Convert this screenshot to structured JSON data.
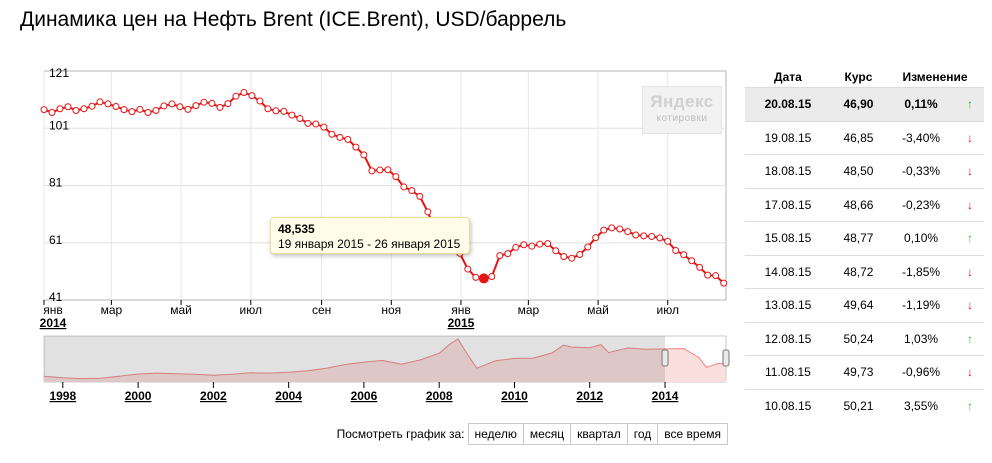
{
  "title": "Динамика цен на Нефть Brent (ICE.Brent), USD/баррель",
  "watermark": {
    "brand": "Яндекс",
    "subtitle": "котировки"
  },
  "tooltip": {
    "value": "48,535",
    "range": "19 января 2015 - 26 января 2015"
  },
  "range_bar": {
    "label": "Посмотреть график за:",
    "buttons": [
      "неделю",
      "месяц",
      "квартал",
      "год",
      "все время"
    ]
  },
  "quotes_table": {
    "headers": [
      "Дата",
      "Курс",
      "Изменение"
    ],
    "rows": [
      {
        "date": "20.08.15",
        "rate": "46,90",
        "change": "0,11%",
        "direction": "up"
      },
      {
        "date": "19.08.15",
        "rate": "46,85",
        "change": "-3,40%",
        "direction": "down"
      },
      {
        "date": "18.08.15",
        "rate": "48,50",
        "change": "-0,33%",
        "direction": "down"
      },
      {
        "date": "17.08.15",
        "rate": "48,66",
        "change": "-0,23%",
        "direction": "down"
      },
      {
        "date": "15.08.15",
        "rate": "48,77",
        "change": "0,10%",
        "direction": "up"
      },
      {
        "date": "14.08.15",
        "rate": "48,72",
        "change": "-1,85%",
        "direction": "down"
      },
      {
        "date": "13.08.15",
        "rate": "49,64",
        "change": "-1,19%",
        "direction": "down"
      },
      {
        "date": "12.08.15",
        "rate": "50,24",
        "change": "1,03%",
        "direction": "up"
      },
      {
        "date": "11.08.15",
        "rate": "49,73",
        "change": "-0,96%",
        "direction": "down"
      },
      {
        "date": "10.08.15",
        "rate": "50,21",
        "change": "3,55%",
        "direction": "up"
      }
    ],
    "arrows": {
      "up": "↑",
      "down": "↓"
    },
    "selected_row": 0
  },
  "chart_data": [
    {
      "type": "line",
      "y_ticks": [
        "121",
        "101",
        "81",
        "61",
        "41"
      ],
      "ylim": [
        41,
        121
      ],
      "x_ticks": [
        "янв",
        "мар",
        "май",
        "июл",
        "сен",
        "ноя",
        "янв",
        "мар",
        "май",
        "июл"
      ],
      "x_years": [
        "2014",
        "2015"
      ],
      "x": [
        "2014-01-01",
        "2014-01-08",
        "2014-01-15",
        "2014-01-22",
        "2014-01-29",
        "2014-02-05",
        "2014-02-12",
        "2014-02-19",
        "2014-02-26",
        "2014-03-05",
        "2014-03-12",
        "2014-03-19",
        "2014-03-26",
        "2014-04-02",
        "2014-04-09",
        "2014-04-16",
        "2014-04-23",
        "2014-04-30",
        "2014-05-07",
        "2014-05-14",
        "2014-05-21",
        "2014-05-28",
        "2014-06-04",
        "2014-06-11",
        "2014-06-18",
        "2014-06-25",
        "2014-07-02",
        "2014-07-09",
        "2014-07-16",
        "2014-07-23",
        "2014-07-30",
        "2014-08-06",
        "2014-08-13",
        "2014-08-20",
        "2014-08-27",
        "2014-09-03",
        "2014-09-10",
        "2014-09-17",
        "2014-09-24",
        "2014-10-01",
        "2014-10-08",
        "2014-10-15",
        "2014-10-22",
        "2014-10-29",
        "2014-11-05",
        "2014-11-12",
        "2014-11-19",
        "2014-11-26",
        "2014-12-03",
        "2014-12-10",
        "2014-12-17",
        "2014-12-24",
        "2014-12-31",
        "2015-01-07",
        "2015-01-14",
        "2015-01-21",
        "2015-01-28",
        "2015-02-04",
        "2015-02-11",
        "2015-02-18",
        "2015-02-25",
        "2015-03-04",
        "2015-03-11",
        "2015-03-18",
        "2015-03-25",
        "2015-04-01",
        "2015-04-08",
        "2015-04-15",
        "2015-04-22",
        "2015-04-29",
        "2015-05-06",
        "2015-05-13",
        "2015-05-20",
        "2015-05-27",
        "2015-06-03",
        "2015-06-10",
        "2015-06-17",
        "2015-06-24",
        "2015-07-01",
        "2015-07-08",
        "2015-07-15",
        "2015-07-22",
        "2015-07-29",
        "2015-08-05",
        "2015-08-12",
        "2015-08-19"
      ],
      "series": [
        {
          "values": [
            107.5,
            106.5,
            107.8,
            108.5,
            107.2,
            107.8,
            108.7,
            110.2,
            109.5,
            108.6,
            107.5,
            106.8,
            107.6,
            106.5,
            107.2,
            108.8,
            109.5,
            108.5,
            107.6,
            108.9,
            110.1,
            109.7,
            108.3,
            109.6,
            112.2,
            113.5,
            112.4,
            110.5,
            107.8,
            107.1,
            106.9,
            105.6,
            104.4,
            102.7,
            102.5,
            101.4,
            98.9,
            97.8,
            97.1,
            94.4,
            91.7,
            86.1,
            86.4,
            86.5,
            84.1,
            80.5,
            79.2,
            77.2,
            71.8,
            64.9,
            60.8,
            59.8,
            57.3,
            51.8,
            48.9,
            48.5,
            49.2,
            56.5,
            57.2,
            59.4,
            60.3,
            59.8,
            60.5,
            60.7,
            58.2,
            56.2,
            55.6,
            56.9,
            59.5,
            62.8,
            65.4,
            66.2,
            65.8,
            64.9,
            63.7,
            63.4,
            63.2,
            62.7,
            61.5,
            58.3,
            56.8,
            54.7,
            52.4,
            49.7,
            49.5,
            46.9
          ]
        }
      ],
      "highlight": {
        "x": "2015-01-21",
        "value": 48.535
      },
      "line_color": "#e31515"
    },
    {
      "type": "area",
      "x_years": [
        "1998",
        "2000",
        "2002",
        "2004",
        "2006",
        "2008",
        "2010",
        "2012",
        "2014"
      ],
      "x": [
        1997.5,
        1998.0,
        1998.5,
        1999.0,
        1999.5,
        2000.0,
        2000.5,
        2001.0,
        2001.5,
        2002.0,
        2002.5,
        2003.0,
        2003.5,
        2004.0,
        2004.5,
        2005.0,
        2005.5,
        2006.0,
        2006.5,
        2007.0,
        2007.5,
        2008.0,
        2008.3,
        2008.5,
        2008.75,
        2009.0,
        2009.5,
        2010.0,
        2010.5,
        2011.0,
        2011.3,
        2011.5,
        2012.0,
        2012.3,
        2012.5,
        2013.0,
        2013.5,
        2014.0,
        2014.5,
        2014.9,
        2015.1,
        2015.4,
        2015.6
      ],
      "values": [
        19,
        14,
        11,
        12,
        19,
        26,
        29,
        27,
        25,
        22,
        25,
        30,
        29,
        32,
        37,
        45,
        57,
        65,
        70,
        58,
        72,
        94,
        125,
        140,
        90,
        45,
        69,
        77,
        78,
        95,
        120,
        114,
        112,
        122,
        96,
        111,
        107,
        108,
        109,
        80,
        48,
        60,
        62
      ],
      "ylim": [
        0,
        150
      ],
      "line_color": "#f08080",
      "fill_color": "#fbdede"
    }
  ]
}
